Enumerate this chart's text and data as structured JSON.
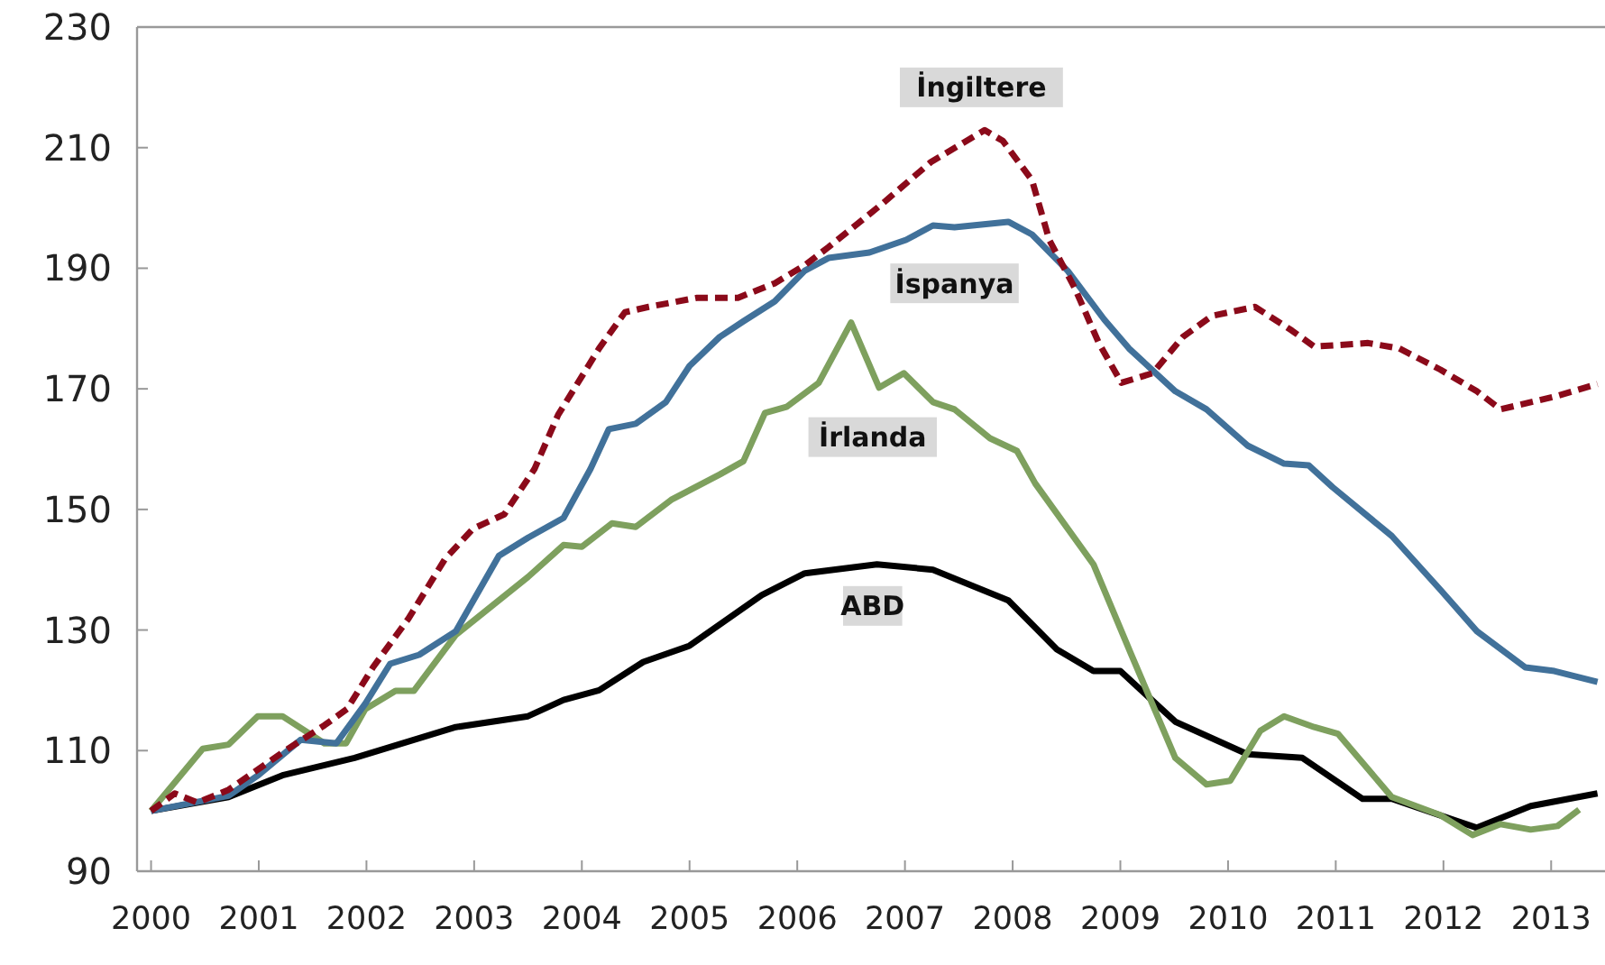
{
  "chart_data": {
    "type": "line",
    "xlim": [
      1999.87,
      2013.5
    ],
    "xticks": [
      2000,
      2001,
      2002,
      2003,
      2004,
      2005,
      2006,
      2007,
      2008,
      2009,
      2010,
      2011,
      2012,
      2013
    ],
    "ylim": [
      90,
      230
    ],
    "yticks": [
      90,
      110,
      130,
      150,
      170,
      190,
      210,
      230
    ],
    "grid": false,
    "marker": "none",
    "series": [
      {
        "name": "İngiltere",
        "color": "#8b0a1a",
        "line_style": "dashed",
        "x": [
          2000,
          2000.22,
          2000.43,
          2000.72,
          2001.22,
          2001.61,
          2001.82,
          2002.06,
          2002.39,
          2002.73,
          2002.99,
          2003.28,
          2003.56,
          2003.78,
          2004.16,
          2004.4,
          2004.62,
          2005.07,
          2005.45,
          2005.79,
          2006.07,
          2006.29,
          2006.79,
          2007.24,
          2007.74,
          2007.91,
          2008.18,
          2008.34,
          2008.58,
          2008.8,
          2009.01,
          2009.3,
          2009.58,
          2009.85,
          2010.25,
          2010.59,
          2010.8,
          2011.3,
          2011.59,
          2011.97,
          2012.31,
          2012.53,
          2013.03,
          2013.43
        ],
        "values": [
          100,
          102.9,
          101.4,
          103.5,
          109.7,
          114.2,
          116.9,
          123.8,
          131.9,
          141.8,
          146.8,
          149.2,
          156.7,
          165.7,
          176.7,
          182.7,
          183.6,
          185.1,
          185.1,
          187.5,
          190.5,
          193.5,
          200.7,
          207.6,
          212.9,
          211.1,
          204.6,
          194.7,
          186.6,
          177.6,
          171,
          172.6,
          178.6,
          182.1,
          183.6,
          179.7,
          177,
          177.6,
          176.7,
          173.2,
          169.6,
          166.6,
          168.7,
          170.8
        ]
      },
      {
        "name": "İspanya",
        "color": "#41719a",
        "line_style": "solid",
        "x": [
          2000,
          2000.72,
          2001,
          2001.39,
          2001.72,
          2001.99,
          2002.22,
          2002.49,
          2002.83,
          2003.23,
          2003.5,
          2003.83,
          2004.08,
          2004.25,
          2004.5,
          2004.78,
          2005,
          2005.28,
          2005.5,
          2005.79,
          2006.07,
          2006.29,
          2006.67,
          2007.01,
          2007.26,
          2007.46,
          2007.96,
          2008.18,
          2008.51,
          2008.85,
          2009.08,
          2009.51,
          2009.8,
          2010.18,
          2010.52,
          2010.75,
          2010.97,
          2011.52,
          2011.97,
          2012.31,
          2012.76,
          2013.03,
          2013.43
        ],
        "values": [
          100,
          102.5,
          106,
          111.8,
          111.2,
          117.8,
          124.4,
          125.9,
          129.8,
          142.3,
          145.3,
          148.6,
          156.7,
          163.3,
          164.2,
          167.8,
          173.8,
          178.6,
          181.2,
          184.5,
          189.6,
          191.7,
          192.6,
          194.7,
          197.1,
          196.8,
          197.7,
          195.6,
          189.6,
          181.5,
          176.7,
          169.6,
          166.6,
          160.6,
          157.6,
          157.3,
          153.7,
          145.6,
          136.7,
          129.8,
          123.8,
          123.2,
          121.4
        ]
      },
      {
        "name": "İrlanda",
        "color": "#7ea05e",
        "line_style": "solid",
        "x": [
          2000,
          2000.48,
          2000.72,
          2000.99,
          2001.22,
          2001.61,
          2001.81,
          2001.99,
          2002.27,
          2002.44,
          2002.83,
          2003.5,
          2003.83,
          2004,
          2004.28,
          2004.5,
          2004.83,
          2005.28,
          2005.5,
          2005.7,
          2005.9,
          2006.2,
          2006.5,
          2006.76,
          2006.99,
          2007.26,
          2007.46,
          2007.79,
          2008.04,
          2008.21,
          2008.75,
          2009.1,
          2009.51,
          2009.8,
          2010.02,
          2010.3,
          2010.52,
          2010.8,
          2011.02,
          2011.52,
          2011.97,
          2012.27,
          2012.53,
          2012.81,
          2013.06,
          2013.26
        ],
        "values": [
          100,
          110.3,
          111,
          115.7,
          115.7,
          111.2,
          111.2,
          116.9,
          119.9,
          119.9,
          129.2,
          138.8,
          144.1,
          143.8,
          147.7,
          147.1,
          151.6,
          155.8,
          158,
          166,
          167,
          171,
          181,
          170.2,
          172.6,
          167.8,
          166.6,
          161.8,
          159.7,
          154.3,
          140.9,
          126,
          108.8,
          104.4,
          105,
          113.3,
          115.7,
          113.9,
          112.8,
          102.3,
          99.3,
          96,
          97.8,
          96.9,
          97.5,
          100.2
        ]
      },
      {
        "name": "ABD",
        "color": "#000000",
        "line_style": "solid",
        "x": [
          2000,
          2000.72,
          2001.22,
          2001.89,
          2002.83,
          2003.5,
          2003.83,
          2004.16,
          2004.57,
          2005,
          2005.67,
          2006.07,
          2006.74,
          2007.26,
          2007.63,
          2007.96,
          2008.41,
          2008.75,
          2009,
          2009.51,
          2010.18,
          2010.69,
          2011.25,
          2011.52,
          2012.31,
          2012.81,
          2013.43
        ],
        "values": [
          100,
          102.3,
          105.9,
          108.8,
          113.9,
          115.7,
          118.4,
          120,
          124.7,
          127.4,
          135.8,
          139.4,
          140.9,
          140,
          137.3,
          134.9,
          126.8,
          123.2,
          123.2,
          114.8,
          109.4,
          108.8,
          102,
          102,
          97.2,
          100.8,
          102.9
        ]
      }
    ]
  }
}
